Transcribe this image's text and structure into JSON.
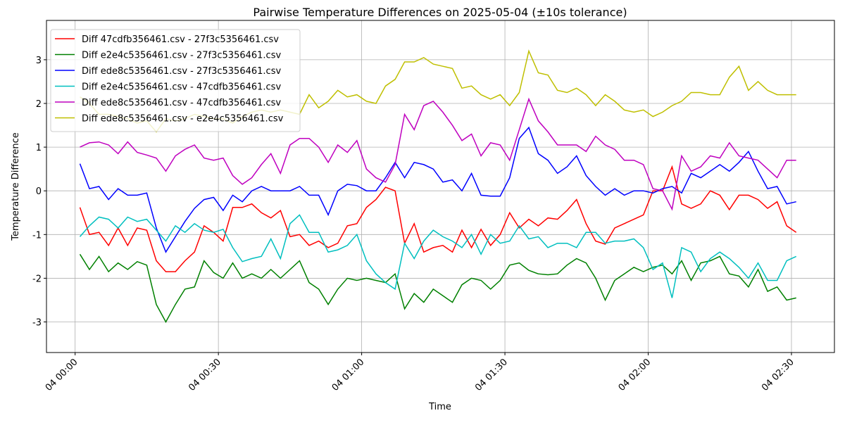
{
  "chart_data": {
    "type": "line",
    "title": "Pairwise Temperature Differences on 2025-05-04 (±10s tolerance)",
    "x_label": "Time",
    "y_label": "Temperature Difference",
    "x": [
      "04 00:01",
      "04 00:03",
      "04 00:05",
      "04 00:07",
      "04 00:09",
      "04 00:11",
      "04 00:13",
      "04 00:15",
      "04 00:17",
      "04 00:19",
      "04 00:21",
      "04 00:23",
      "04 00:25",
      "04 00:27",
      "04 00:29",
      "04 00:31",
      "04 00:33",
      "04 00:35",
      "04 00:37",
      "04 00:39",
      "04 00:41",
      "04 00:43",
      "04 00:45",
      "04 00:47",
      "04 00:49",
      "04 00:51",
      "04 00:53",
      "04 00:55",
      "04 00:57",
      "04 00:59",
      "04 01:01",
      "04 01:03",
      "04 01:05",
      "04 01:07",
      "04 01:09",
      "04 01:11",
      "04 01:13",
      "04 01:15",
      "04 01:17",
      "04 01:19",
      "04 01:21",
      "04 01:23",
      "04 01:25",
      "04 01:27",
      "04 01:29",
      "04 01:31",
      "04 01:33",
      "04 01:35",
      "04 01:37",
      "04 01:39",
      "04 01:41",
      "04 01:43",
      "04 01:45",
      "04 01:47",
      "04 01:49",
      "04 01:51",
      "04 01:53",
      "04 01:55",
      "04 01:57",
      "04 01:59",
      "04 02:01",
      "04 02:03",
      "04 02:05",
      "04 02:07",
      "04 02:09",
      "04 02:11",
      "04 02:13",
      "04 02:15",
      "04 02:17",
      "04 02:19",
      "04 02:21",
      "04 02:23",
      "04 02:25",
      "04 02:27",
      "04 02:29",
      "04 02:31"
    ],
    "xlim": [
      "03 23:54",
      "04 02:39"
    ],
    "xticks": [
      "04 00:00",
      "04 00:30",
      "04 01:00",
      "04 01:30",
      "04 02:00",
      "04 02:30"
    ],
    "ylim": [
      -3.7,
      3.9
    ],
    "yticks": [
      -3,
      -2,
      -1,
      0,
      1,
      2,
      3
    ],
    "grid": true,
    "legend": "upper left",
    "series": [
      {
        "name": "Diff 47cdfb356461.csv - 27f3c5356461.csv",
        "color": "#ff0000",
        "values": [
          -0.38,
          -1.0,
          -0.95,
          -1.25,
          -0.85,
          -1.25,
          -0.85,
          -0.9,
          -1.6,
          -1.85,
          -1.85,
          -1.6,
          -1.4,
          -0.8,
          -0.95,
          -1.15,
          -0.38,
          -0.38,
          -0.3,
          -0.5,
          -0.62,
          -0.45,
          -1.05,
          -1.0,
          -1.25,
          -1.15,
          -1.3,
          -1.2,
          -0.8,
          -0.75,
          -0.38,
          -0.2,
          0.08,
          0.0,
          -1.2,
          -0.75,
          -1.4,
          -1.3,
          -1.25,
          -1.4,
          -0.9,
          -1.3,
          -0.88,
          -1.25,
          -1.0,
          -0.5,
          -0.85,
          -0.65,
          -0.8,
          -0.62,
          -0.65,
          -0.45,
          -0.2,
          -0.75,
          -1.15,
          -1.22,
          -0.85,
          -0.75,
          -0.65,
          -0.55,
          0.0,
          0.0,
          0.55,
          -0.3,
          -0.4,
          -0.3,
          0.0,
          -0.1,
          -0.43,
          -0.1,
          -0.1,
          -0.2,
          -0.4,
          -0.25,
          -0.8,
          -0.95
        ]
      },
      {
        "name": "Diff e2e4c5356461.csv - 27f3c5356461.csv",
        "color": "#008000",
        "values": [
          -1.45,
          -1.8,
          -1.5,
          -1.85,
          -1.65,
          -1.8,
          -1.62,
          -1.7,
          -2.6,
          -3.0,
          -2.6,
          -2.25,
          -2.2,
          -1.6,
          -1.87,
          -2.0,
          -1.65,
          -2.0,
          -1.9,
          -2.0,
          -1.8,
          -2.0,
          -1.8,
          -1.6,
          -2.1,
          -2.25,
          -2.6,
          -2.25,
          -2.0,
          -2.05,
          -2.0,
          -2.05,
          -2.1,
          -1.9,
          -2.7,
          -2.35,
          -2.55,
          -2.25,
          -2.4,
          -2.55,
          -2.15,
          -2.0,
          -2.05,
          -2.25,
          -2.05,
          -1.7,
          -1.65,
          -1.82,
          -1.9,
          -1.92,
          -1.9,
          -1.7,
          -1.55,
          -1.65,
          -2.0,
          -2.5,
          -2.05,
          -1.9,
          -1.75,
          -1.85,
          -1.75,
          -1.7,
          -1.9,
          -1.6,
          -2.05,
          -1.65,
          -1.6,
          -1.5,
          -1.9,
          -1.95,
          -2.2,
          -1.8,
          -2.3,
          -2.2,
          -2.5,
          -2.45
        ]
      },
      {
        "name": "Diff ede8c5356461.csv - 27f3c5356461.csv",
        "color": "#0000ff",
        "values": [
          0.62,
          0.05,
          0.1,
          -0.2,
          0.05,
          -0.1,
          -0.1,
          -0.05,
          -0.85,
          -1.4,
          -1.05,
          -0.7,
          -0.4,
          -0.2,
          -0.15,
          -0.45,
          -0.1,
          -0.25,
          0.0,
          0.1,
          0.0,
          0.0,
          0.0,
          0.1,
          -0.1,
          -0.1,
          -0.55,
          0.0,
          0.15,
          0.12,
          0.0,
          0.0,
          0.3,
          0.65,
          0.3,
          0.65,
          0.6,
          0.5,
          0.2,
          0.25,
          0.0,
          0.4,
          -0.1,
          -0.12,
          -0.12,
          0.3,
          1.2,
          1.45,
          0.85,
          0.7,
          0.4,
          0.55,
          0.8,
          0.35,
          0.1,
          -0.1,
          0.05,
          -0.1,
          0.0,
          0.0,
          -0.05,
          0.05,
          0.1,
          -0.05,
          0.4,
          0.3,
          0.45,
          0.6,
          0.45,
          0.65,
          0.9,
          0.45,
          0.05,
          0.1,
          -0.3,
          -0.25
        ]
      },
      {
        "name": "Diff e2e4c5356461.csv - 47cdfb356461.csv",
        "color": "#00bfbf",
        "values": [
          -1.05,
          -0.8,
          -0.6,
          -0.65,
          -0.85,
          -0.6,
          -0.7,
          -0.65,
          -0.9,
          -1.15,
          -0.8,
          -0.95,
          -0.75,
          -0.9,
          -0.95,
          -0.88,
          -1.3,
          -1.62,
          -1.55,
          -1.5,
          -1.1,
          -1.55,
          -0.75,
          -0.55,
          -0.95,
          -0.95,
          -1.4,
          -1.35,
          -1.25,
          -1.0,
          -1.6,
          -1.9,
          -2.1,
          -2.25,
          -1.2,
          -1.55,
          -1.15,
          -0.9,
          -1.05,
          -1.15,
          -1.3,
          -1.0,
          -1.45,
          -1.0,
          -1.2,
          -1.15,
          -0.8,
          -1.1,
          -1.05,
          -1.3,
          -1.2,
          -1.2,
          -1.3,
          -0.95,
          -0.95,
          -1.2,
          -1.15,
          -1.15,
          -1.1,
          -1.3,
          -1.8,
          -1.65,
          -2.45,
          -1.3,
          -1.4,
          -1.85,
          -1.55,
          -1.4,
          -1.55,
          -1.75,
          -2.0,
          -1.65,
          -2.05,
          -2.05,
          -1.6,
          -1.5
        ]
      },
      {
        "name": "Diff ede8c5356461.csv - 47cdfb356461.csv",
        "color": "#bf00bf",
        "values": [
          1.0,
          1.1,
          1.12,
          1.05,
          0.85,
          1.12,
          0.88,
          0.82,
          0.75,
          0.45,
          0.8,
          0.95,
          1.05,
          0.75,
          0.7,
          0.75,
          0.35,
          0.15,
          0.3,
          0.6,
          0.85,
          0.4,
          1.05,
          1.2,
          1.2,
          1.0,
          0.65,
          1.05,
          0.88,
          1.15,
          0.5,
          0.3,
          0.2,
          0.6,
          1.75,
          1.4,
          1.95,
          2.05,
          1.8,
          1.5,
          1.15,
          1.3,
          0.8,
          1.1,
          1.05,
          0.7,
          1.4,
          2.1,
          1.6,
          1.35,
          1.05,
          1.05,
          1.05,
          0.9,
          1.25,
          1.05,
          0.95,
          0.7,
          0.7,
          0.6,
          0.05,
          0.0,
          -0.42,
          0.8,
          0.45,
          0.55,
          0.8,
          0.75,
          1.1,
          0.8,
          0.75,
          0.7,
          0.5,
          0.3,
          0.7,
          0.7
        ]
      },
      {
        "name": "Diff ede8c5356461.csv - e2e4c5356461.csv",
        "color": "#bfbf00",
        "values": [
          2.15,
          2.0,
          1.75,
          1.75,
          1.7,
          1.65,
          1.55,
          1.6,
          1.35,
          1.65,
          1.6,
          1.65,
          1.75,
          1.7,
          1.65,
          1.65,
          1.55,
          1.7,
          1.8,
          1.85,
          1.8,
          1.85,
          1.8,
          1.75,
          2.2,
          1.9,
          2.05,
          2.3,
          2.15,
          2.2,
          2.05,
          2.0,
          2.4,
          2.55,
          2.95,
          2.95,
          3.05,
          2.9,
          2.85,
          2.8,
          2.35,
          2.4,
          2.2,
          2.1,
          2.2,
          1.95,
          2.25,
          3.2,
          2.7,
          2.65,
          2.3,
          2.25,
          2.35,
          2.2,
          1.95,
          2.2,
          2.05,
          1.85,
          1.8,
          1.85,
          1.7,
          1.8,
          1.95,
          2.05,
          2.25,
          2.25,
          2.2,
          2.2,
          2.6,
          2.85,
          2.3,
          2.5,
          2.3,
          2.2,
          2.2,
          2.2
        ]
      }
    ]
  }
}
